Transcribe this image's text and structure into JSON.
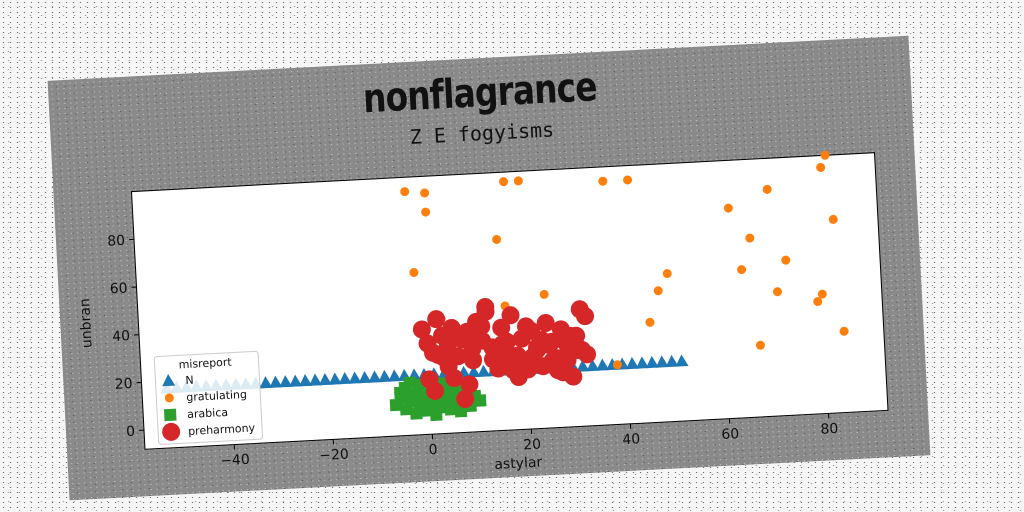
{
  "title": "nonflagrance",
  "subtitle": "Z E fogyisms",
  "chart_data": {
    "type": "scatter",
    "title": "Z E fogyisms",
    "xlabel": "astylar",
    "ylabel": "unbran",
    "xlim": [
      -58,
      92
    ],
    "ylim": [
      -8,
      100
    ],
    "xticks": [
      -40,
      -20,
      0,
      20,
      40,
      60,
      80
    ],
    "yticks": [
      0,
      20,
      40,
      60,
      80
    ],
    "legend": {
      "title": "misreport",
      "position": "lower-left"
    },
    "series": [
      {
        "name": "N",
        "color": "#1f77b4",
        "marker": "triangle",
        "x": [
          -53,
          -51,
          -49,
          -47,
          -45,
          -43,
          -41,
          -39,
          -37,
          -35,
          -33,
          -31,
          -29,
          -27,
          -25,
          -23,
          -21,
          -19,
          -17,
          -15,
          -13,
          -11,
          -9,
          -7,
          -5,
          -3,
          -1,
          1,
          3,
          5,
          7,
          9,
          11,
          13,
          15,
          17,
          19,
          21,
          23,
          25,
          27,
          29,
          31,
          33,
          35,
          37,
          39,
          41,
          43,
          45,
          47,
          49,
          51
        ],
        "y": [
          17,
          17,
          17,
          17,
          17,
          17,
          17,
          17,
          17,
          17,
          17,
          17,
          17,
          17,
          17,
          17,
          17,
          17,
          17,
          17,
          17,
          17,
          17,
          17,
          17,
          17,
          17,
          17,
          17,
          17,
          17,
          17,
          17,
          17,
          17,
          17,
          17,
          17,
          17,
          17,
          17,
          17,
          17,
          17,
          17,
          17,
          17,
          17,
          17,
          17,
          17,
          17,
          17
        ]
      },
      {
        "name": "gratulating",
        "color": "#ff7f0e",
        "marker": "circle-small",
        "x": [
          -3,
          1,
          1,
          -2,
          3,
          17,
          20,
          15,
          16,
          24,
          37,
          42,
          45,
          47,
          49,
          62,
          64,
          66,
          67,
          70,
          71,
          73,
          79,
          80,
          81,
          82,
          83,
          84,
          10,
          12,
          15,
          38,
          22
        ],
        "y": [
          94,
          93,
          85,
          60,
          40,
          96,
          96,
          72,
          44,
          48,
          94,
          94,
          34,
          47,
          54,
          80,
          54,
          67,
          22,
          87,
          44,
          57,
          39,
          42,
          95,
          100,
          73,
          26,
          38,
          41,
          34,
          17,
          31
        ]
      },
      {
        "name": "arabica",
        "color": "#2ca02c",
        "marker": "square",
        "x": [
          -7,
          -6,
          -5,
          -5,
          -4,
          -3,
          -3,
          -2,
          -2,
          -1,
          -1,
          0,
          0,
          1,
          1,
          2,
          2,
          3,
          3,
          4,
          4,
          5,
          6,
          6,
          7,
          8,
          9,
          10,
          -6,
          -4,
          0,
          2,
          -1,
          3,
          5,
          -3
        ],
        "y": [
          5,
          10,
          3,
          12,
          7,
          1,
          9,
          5,
          13,
          2,
          8,
          11,
          4,
          7,
          0,
          10,
          3,
          6,
          12,
          2,
          8,
          5,
          9,
          1,
          6,
          3,
          7,
          5,
          8,
          14,
          15,
          13,
          4,
          9,
          11,
          6
        ]
      },
      {
        "name": "preharmony",
        "color": "#d62728",
        "marker": "circle-large",
        "x": [
          -1,
          0,
          1,
          2,
          3,
          4,
          5,
          6,
          7,
          8,
          9,
          10,
          11,
          12,
          13,
          14,
          15,
          16,
          17,
          18,
          19,
          20,
          21,
          22,
          23,
          24,
          25,
          26,
          27,
          28,
          29,
          30,
          31,
          32,
          0,
          2,
          4,
          6,
          8,
          10,
          12,
          14,
          16,
          18,
          20,
          22,
          24,
          26,
          28,
          30,
          32,
          1,
          3,
          5,
          7,
          9,
          11,
          13,
          15,
          17,
          19,
          21,
          23,
          25,
          27,
          29,
          31
        ],
        "y": [
          36,
          30,
          26,
          40,
          33,
          28,
          36,
          24,
          31,
          34,
          22,
          38,
          30,
          44,
          27,
          20,
          35,
          29,
          40,
          23,
          30,
          17,
          33,
          26,
          18,
          36,
          28,
          21,
          33,
          27,
          13,
          30,
          41,
          22,
          15,
          25,
          20,
          33,
          12,
          30,
          42,
          18,
          23,
          14,
          35,
          25,
          27,
          16,
          20,
          24,
          38,
          10,
          24,
          15,
          6,
          27,
          36,
          22,
          28,
          17,
          19,
          22,
          29,
          20,
          15,
          30,
          24
        ]
      }
    ]
  }
}
